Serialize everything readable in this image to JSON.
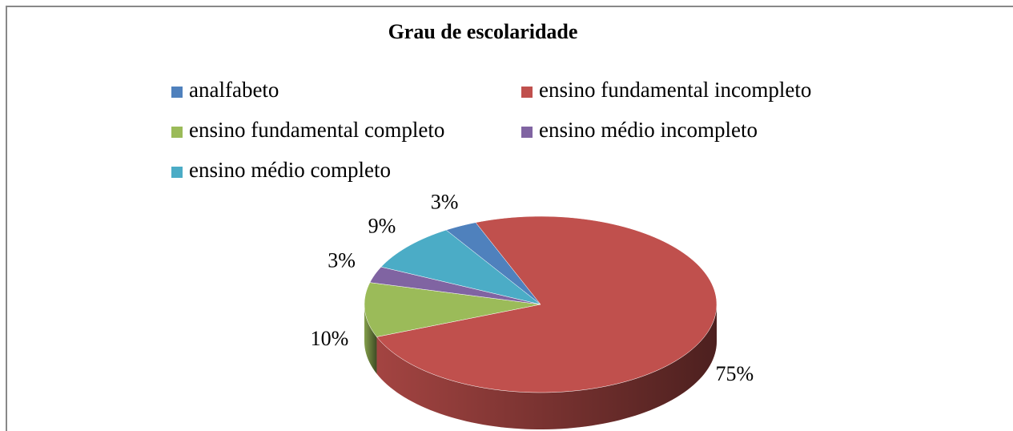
{
  "chart_data": {
    "type": "pie",
    "title": "Grau de escolaridade",
    "categories": [
      "analfabeto",
      "ensino fundamental incompleto",
      "ensino fundamental completo",
      "ensino médio incompleto",
      "ensino médio completo"
    ],
    "values": [
      3,
      75,
      10,
      3,
      9
    ],
    "value_labels": [
      "3%",
      "75%",
      "10%",
      "3%",
      "9%"
    ],
    "colors": [
      "#4f81bd",
      "#c0504d",
      "#9bbb59",
      "#8064a2",
      "#4bacc6"
    ],
    "legend": "top"
  }
}
